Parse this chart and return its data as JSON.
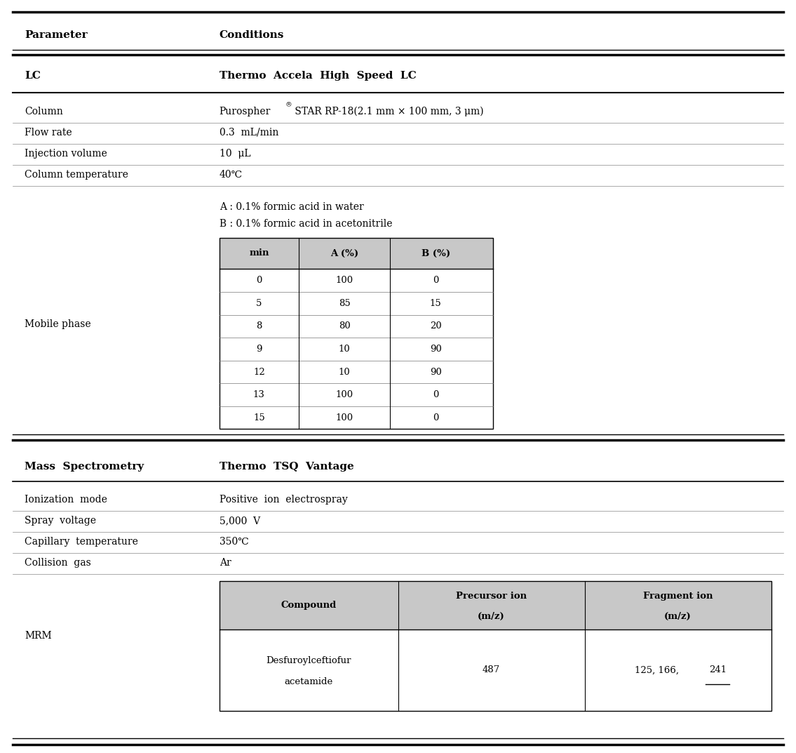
{
  "header_col1": "Parameter",
  "header_col2": "Conditions",
  "bg_color": "#ffffff",
  "font_color": "#000000",
  "lc_section_param": "LC",
  "lc_section_condition": "Thermo  Accela  High  Speed  LC",
  "lc_rows": [
    {
      "param": "Column",
      "condition": "Purospher® STAR RP-18(2.1 mm × 100 mm, 3 μm)"
    },
    {
      "param": "Flow rate",
      "condition": "0.3  mL/min"
    },
    {
      "param": "Injection volume",
      "condition": "10  μL"
    },
    {
      "param": "Column temperature",
      "condition": "40℃"
    }
  ],
  "mobile_phase_label": "Mobile phase",
  "mobile_phase_notes": [
    "A : 0.1% formic acid in water",
    "B : 0.1% formic acid in acetonitrile"
  ],
  "gradient_table_headers": [
    "min",
    "A (%)",
    "B (%)"
  ],
  "gradient_table_data": [
    [
      "0",
      "100",
      "0"
    ],
    [
      "5",
      "85",
      "15"
    ],
    [
      "8",
      "80",
      "20"
    ],
    [
      "9",
      "10",
      "90"
    ],
    [
      "12",
      "10",
      "90"
    ],
    [
      "13",
      "100",
      "0"
    ],
    [
      "15",
      "100",
      "0"
    ]
  ],
  "ms_section_param": "Mass  Spectrometry",
  "ms_section_condition": "Thermo  TSQ  Vantage",
  "ms_rows": [
    {
      "param": "Ionization  mode",
      "condition": "Positive  ion  electrospray"
    },
    {
      "param": "Spray  voltage",
      "condition": "5,000  V"
    },
    {
      "param": "Capillary  temperature",
      "condition": "350℃"
    },
    {
      "param": "Collision  gas",
      "condition": "Ar"
    }
  ],
  "mrm_label": "MRM",
  "mrm_table_headers": [
    "Compound",
    "Precursor ion\n(m/z)",
    "Fragment ion\n(m/z)"
  ],
  "mrm_compound_line1": "Desfuroylceftiofur",
  "mrm_compound_line2": "acetamide",
  "mrm_precursor": "487",
  "mrm_fragment_prefix": "125, 166, ",
  "mrm_fragment_underlined": "241",
  "header_bg": "#c8c8c8"
}
